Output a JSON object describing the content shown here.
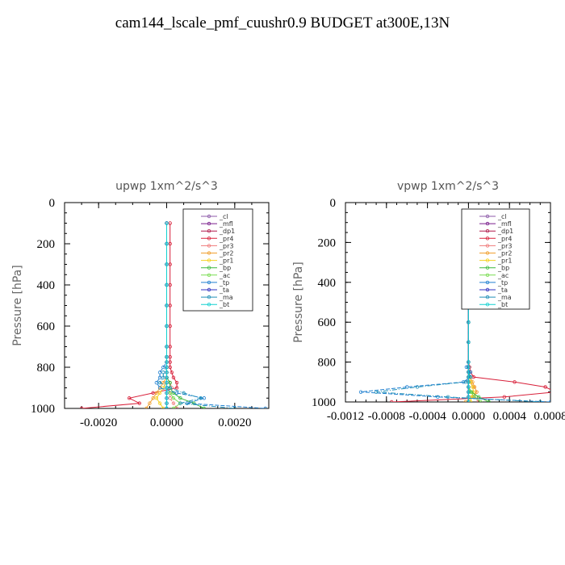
{
  "page_title": "cam144_lscale_pmf_cuushr0.9  BUDGET at300E,13N",
  "legend_items": [
    "_cl",
    "_mfl",
    "_dp1",
    "_pr4",
    "_pr3",
    "_pr2",
    "_pr1",
    "_bp",
    "_ac",
    "_tp",
    "_ta",
    "_ma",
    "_bt"
  ],
  "legend_colors": [
    "#8c5aa8",
    "#7a1f8c",
    "#b0184a",
    "#d8203a",
    "#f07a7a",
    "#f0a030",
    "#f4d020",
    "#3cb83c",
    "#78dc50",
    "#2080d0",
    "#3030c0",
    "#2090b8",
    "#10d0d0"
  ],
  "chart_data": [
    {
      "type": "line",
      "title": "upwp  1xm^2/s^3",
      "xlabel": "",
      "ylabel": "Pressure [hPa]",
      "xlim": [
        -0.003,
        0.003
      ],
      "ylim": [
        1000,
        0
      ],
      "xticks": [
        -0.002,
        0.0,
        0.002
      ],
      "xtick_labels": [
        "-0.0020",
        "0.0000",
        "0.0020"
      ],
      "yticks": [
        0,
        200,
        400,
        600,
        800,
        1000
      ],
      "ytick_labels": [
        "0",
        "200",
        "400",
        "600",
        "800",
        "1000"
      ],
      "legend_position": "top-right",
      "grid": false,
      "levels": [
        100,
        200,
        300,
        400,
        500,
        600,
        700,
        750,
        775,
        800,
        825,
        850,
        875,
        900,
        925,
        950,
        975,
        1000
      ],
      "series": [
        {
          "name": "_cl",
          "values": [
            0,
            0,
            0,
            0,
            0,
            0,
            0,
            0,
            0,
            0,
            0,
            0,
            0,
            0,
            0,
            0,
            0,
            0
          ]
        },
        {
          "name": "_mfl",
          "values": [
            0,
            0,
            0,
            0,
            0,
            0,
            0,
            0,
            0,
            0,
            0,
            0,
            0,
            0,
            0,
            0,
            0,
            0
          ]
        },
        {
          "name": "_dp1",
          "values": [
            0,
            0,
            0,
            0,
            0,
            0,
            0,
            0,
            0,
            0,
            0,
            0,
            0,
            0,
            0,
            0,
            0,
            0
          ]
        },
        {
          "name": "_pr4",
          "values": [
            0.0001,
            0.0001,
            0.0001,
            0.0001,
            0.0001,
            0.0001,
            0.0001,
            0.0001,
            0.0001,
            0.0001,
            0.00015,
            0.0002,
            0.0003,
            0.0003,
            -0.0004,
            -0.0011,
            -0.0008,
            -0.0025
          ]
        },
        {
          "name": "_pr3",
          "values": [
            0,
            0,
            0,
            0,
            0,
            0,
            0,
            0,
            0,
            0,
            0,
            0,
            0.0001,
            0.00015,
            0.0001,
            0.0001,
            0.0002,
            0.0003
          ]
        },
        {
          "name": "_pr2",
          "values": [
            0,
            0,
            0,
            0,
            0,
            0,
            0,
            0,
            0,
            0,
            0,
            0,
            -0.0001,
            -0.0002,
            -0.0003,
            -0.0004,
            -0.0005,
            -0.0006
          ]
        },
        {
          "name": "_pr1",
          "values": [
            0,
            0,
            0,
            0,
            0,
            0,
            0,
            0,
            0,
            0,
            0,
            0,
            0,
            -0.0001,
            -0.0002,
            -0.0003,
            -0.0002,
            -0.0001
          ]
        },
        {
          "name": "_bp",
          "values": [
            0,
            0,
            0,
            0,
            0,
            0,
            0,
            0,
            0,
            0,
            0,
            0,
            0.0001,
            0.0001,
            0.0002,
            0.0004,
            0.0008,
            0.0011
          ]
        },
        {
          "name": "_ac",
          "values": [
            0,
            0,
            0,
            0,
            0,
            0,
            0,
            0,
            0,
            0,
            0,
            0,
            0,
            0,
            0.0001,
            0.0002,
            0.0004,
            0.0002
          ]
        },
        {
          "name": "_tp",
          "values": [
            0,
            0,
            0,
            0,
            0,
            0,
            0,
            0,
            0,
            -0.0001,
            -0.0002,
            -0.0002,
            -0.0003,
            -0.0002,
            0.0003,
            0.0011,
            0.0006,
            0.0029
          ]
        },
        {
          "name": "_ta",
          "values": [
            0,
            0,
            0,
            0,
            0,
            0,
            0,
            0,
            0,
            0,
            0,
            0,
            0,
            0,
            0,
            0,
            0,
            0
          ]
        },
        {
          "name": "_ma",
          "values": [
            0,
            0,
            0,
            0,
            0,
            0,
            0,
            0,
            0,
            0,
            -0.0001,
            -0.0001,
            -0.0002,
            0.0001,
            0.0005,
            0.001,
            0.0004,
            0.002
          ]
        },
        {
          "name": "_bt",
          "values": [
            0,
            0,
            0,
            0,
            0,
            0,
            0,
            0,
            0,
            0,
            0,
            0,
            0,
            0,
            0,
            0,
            0,
            0
          ]
        }
      ]
    },
    {
      "type": "line",
      "title": "vpwp  1xm^2/s^3",
      "xlabel": "",
      "ylabel": "Pressure [hPa]",
      "xlim": [
        -0.0012,
        0.0008
      ],
      "ylim": [
        1000,
        0
      ],
      "xticks": [
        -0.0012,
        -0.0008,
        -0.0004,
        0.0,
        0.0004,
        0.0008
      ],
      "xtick_labels": [
        "-0.0012",
        "-0.0008",
        "-0.0004",
        "0.0000",
        "0.0004",
        "0.0008"
      ],
      "yticks": [
        0,
        200,
        400,
        600,
        800,
        1000
      ],
      "ytick_labels": [
        "0",
        "200",
        "400",
        "600",
        "800",
        "1000"
      ],
      "legend_position": "top-right",
      "grid": false,
      "levels": [
        100,
        150,
        200,
        225,
        250,
        275,
        300,
        400,
        500,
        600,
        700,
        800,
        825,
        850,
        875,
        900,
        925,
        950,
        975,
        1000
      ],
      "series": [
        {
          "name": "_cl",
          "values": [
            0,
            0,
            0,
            0,
            0,
            0,
            0,
            0,
            0,
            0,
            0,
            0,
            0,
            0,
            0,
            0,
            0,
            0,
            0,
            0
          ]
        },
        {
          "name": "_mfl",
          "values": [
            0,
            0,
            0,
            0,
            0,
            0,
            0,
            0,
            0,
            0,
            0,
            0,
            0,
            0,
            0,
            0,
            0,
            0,
            0,
            0
          ]
        },
        {
          "name": "_dp1",
          "values": [
            0,
            0,
            0,
            0,
            0,
            0,
            0,
            0,
            0,
            0,
            0,
            0,
            0,
            0,
            0,
            0,
            0,
            0,
            0,
            0
          ]
        },
        {
          "name": "_pr4",
          "values": [
            0,
            3e-05,
            -2e-05,
            4e-05,
            5e-05,
            3e-05,
            0,
            0,
            0,
            0,
            0,
            0,
            1e-05,
            2e-05,
            5e-05,
            0.00045,
            0.00075,
            0.00085,
            0.00035,
            -0.00075
          ]
        },
        {
          "name": "_pr3",
          "values": [
            0,
            0,
            0,
            0,
            0,
            0,
            0,
            0,
            0,
            0,
            0,
            0,
            0,
            0,
            0,
            2e-05,
            5e-05,
            8e-05,
            5e-05,
            0.0001
          ]
        },
        {
          "name": "_pr2",
          "values": [
            0,
            0,
            0,
            0,
            0,
            0,
            0,
            0,
            0,
            0,
            0,
            0,
            0,
            0,
            2e-05,
            4e-05,
            6e-05,
            8e-05,
            4e-05,
            -3e-05
          ]
        },
        {
          "name": "_pr1",
          "values": [
            0,
            0,
            0,
            0,
            0,
            0,
            0,
            0,
            0,
            0,
            0,
            0,
            0,
            0,
            1e-05,
            2e-05,
            4e-05,
            5e-05,
            3e-05,
            2e-05
          ]
        },
        {
          "name": "_bp",
          "values": [
            0,
            0,
            0,
            0,
            0,
            0,
            0,
            0,
            0,
            0,
            0,
            0,
            0,
            0,
            0,
            0,
            0,
            3e-05,
            0.0001,
            0.0002
          ]
        },
        {
          "name": "_ac",
          "values": [
            0,
            0,
            0,
            0,
            0,
            0,
            0,
            0,
            0,
            0,
            0,
            0,
            0,
            0,
            0,
            0,
            0,
            2e-05,
            6e-05,
            0.00012
          ]
        },
        {
          "name": "_tp",
          "values": [
            0,
            -2e-05,
            2e-05,
            -3e-05,
            -4e-05,
            -2e-05,
            0,
            0,
            0,
            0,
            0,
            0,
            -2e-05,
            2e-05,
            2e-05,
            -5e-05,
            -0.0006,
            -0.00105,
            -0.0003,
            0.0008
          ]
        },
        {
          "name": "_ta",
          "values": [
            0,
            0,
            0,
            0,
            0,
            0,
            0,
            0,
            0,
            0,
            0,
            0,
            0,
            0,
            0,
            0,
            0,
            0,
            0,
            0
          ]
        },
        {
          "name": "_ma",
          "values": [
            0,
            0,
            0,
            0,
            0,
            0,
            0,
            0,
            0,
            0,
            0,
            0,
            0,
            0,
            2e-05,
            -3e-05,
            -0.0005,
            -0.0009,
            -0.0002,
            0.0007
          ]
        },
        {
          "name": "_bt",
          "values": [
            0,
            0,
            0,
            0,
            0,
            0,
            0,
            0,
            0,
            0,
            0,
            0,
            0,
            0,
            0,
            0,
            0,
            0,
            0,
            0
          ]
        }
      ]
    }
  ]
}
